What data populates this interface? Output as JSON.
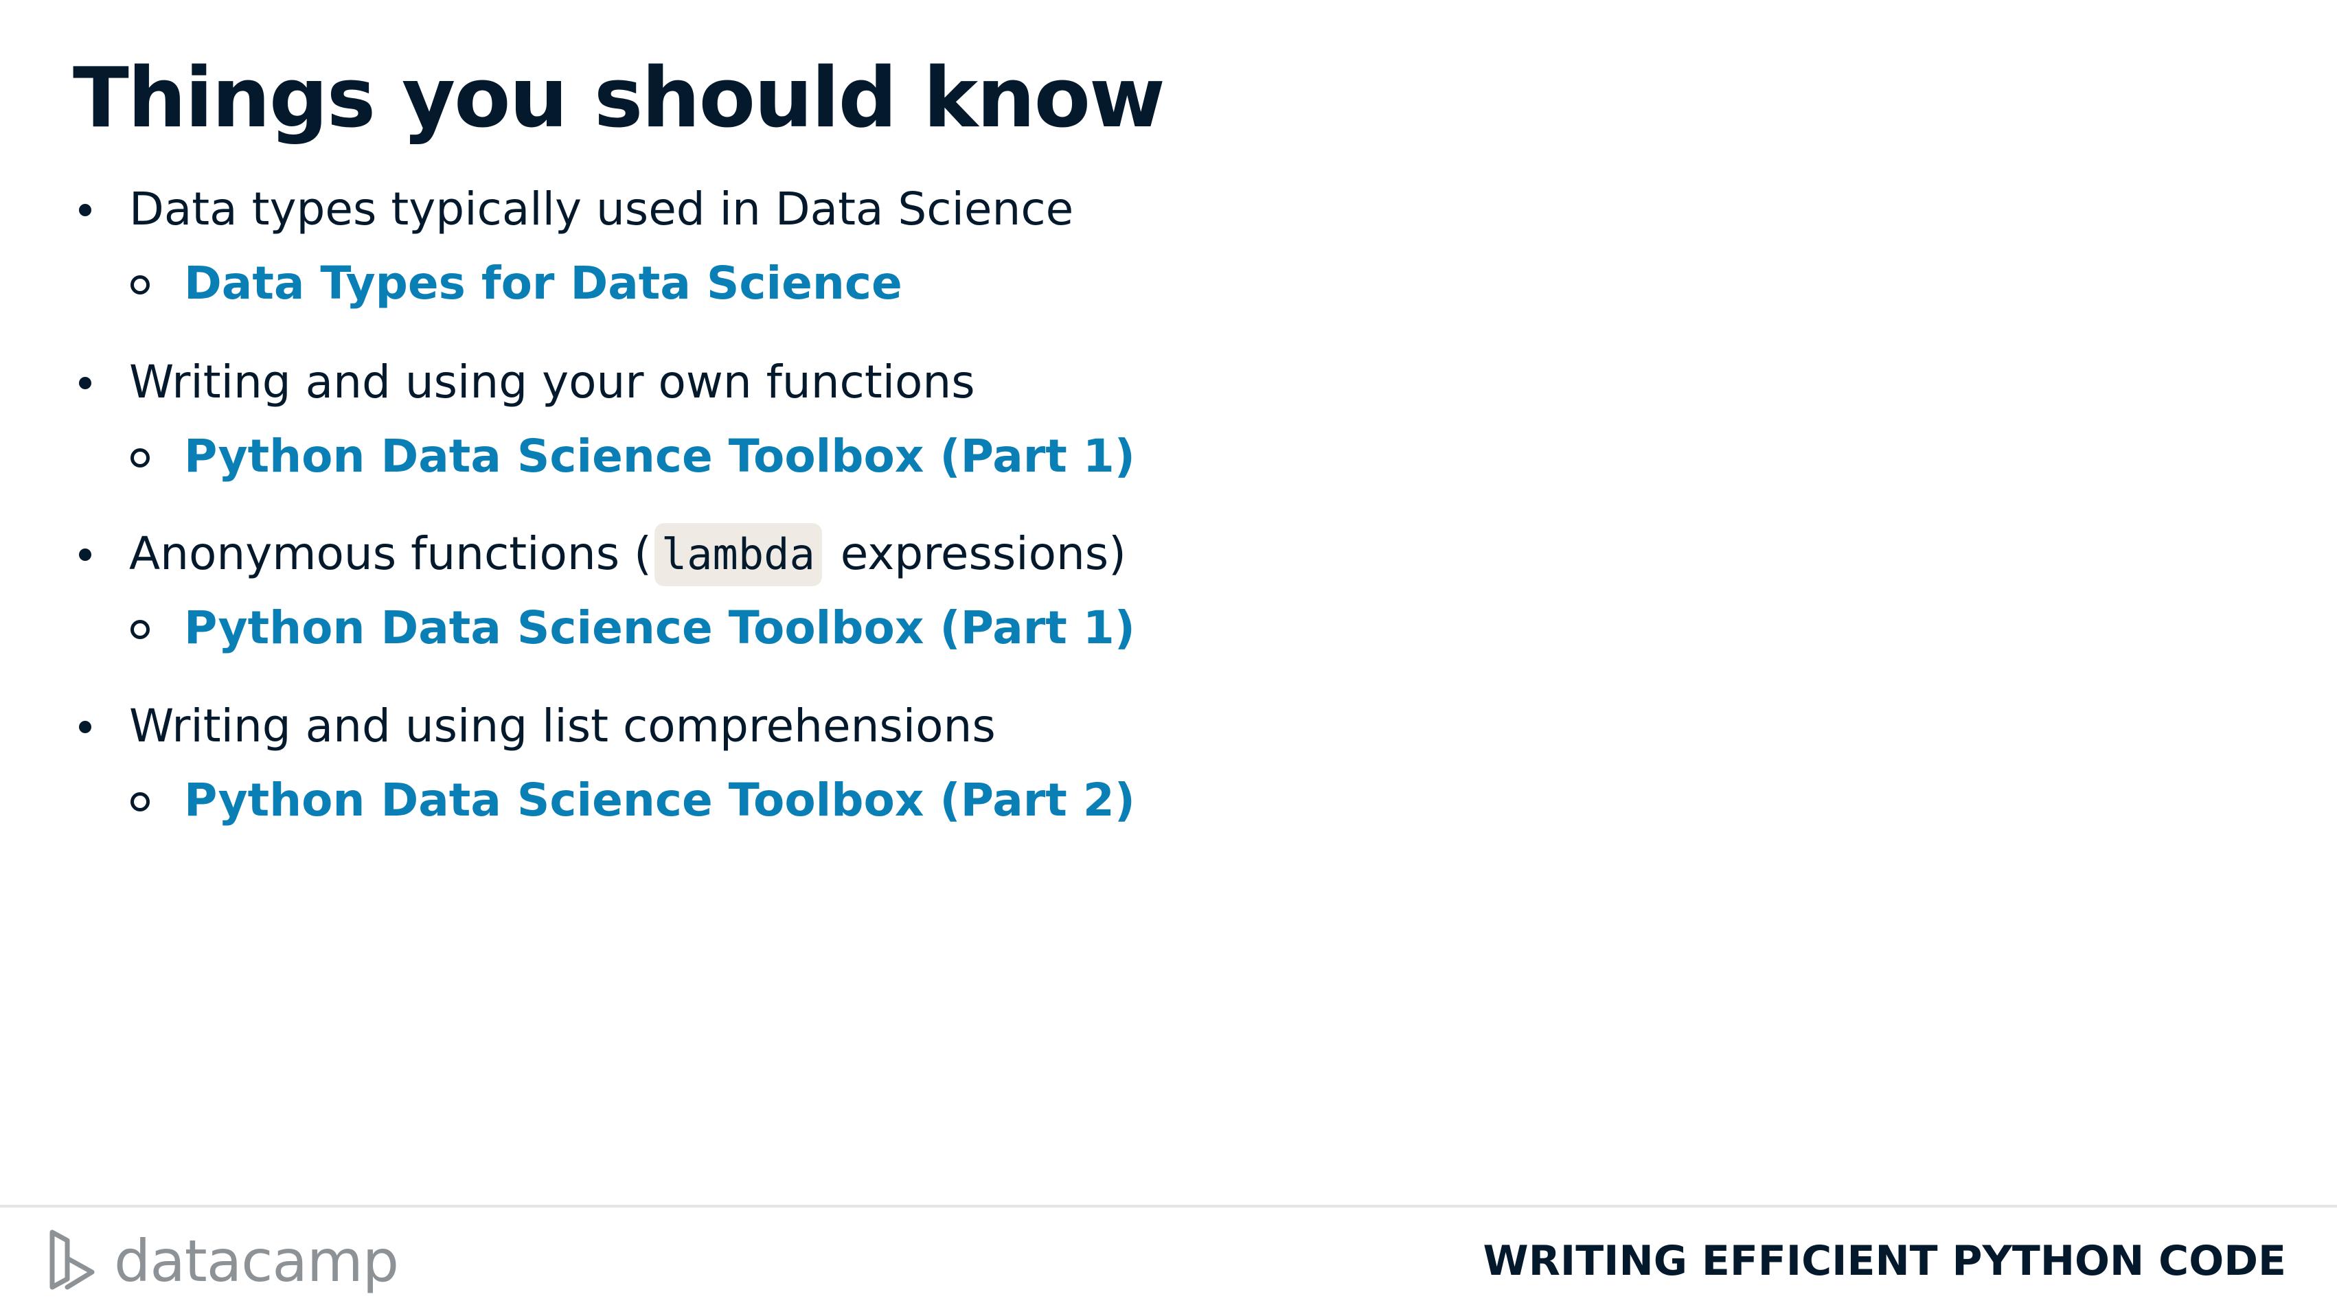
{
  "slide": {
    "title": "Things you should know"
  },
  "bullets": [
    {
      "text": "Data types typically used in Data Science",
      "link": "Data Types for Data Science"
    },
    {
      "text": "Writing and using your own functions",
      "link": "Python Data Science Toolbox (Part 1)"
    },
    {
      "text_before": "Anonymous functions (",
      "code": "lambda",
      "text_after": " expressions)",
      "link": "Python Data Science Toolbox (Part 1)"
    },
    {
      "text": "Writing and using list comprehensions",
      "link": "Python Data Science Toolbox (Part 2)"
    }
  ],
  "footer": {
    "logo_text": "datacamp",
    "course_title": "WRITING EFFICIENT PYTHON CODE"
  },
  "colors": {
    "heading": "#05192d",
    "link": "#0a7fb5",
    "code_background": "#efebe4",
    "logo": "#8d9297",
    "divider": "#e4e4e4"
  },
  "icons": {
    "logo": "datacamp-logo-icon"
  }
}
